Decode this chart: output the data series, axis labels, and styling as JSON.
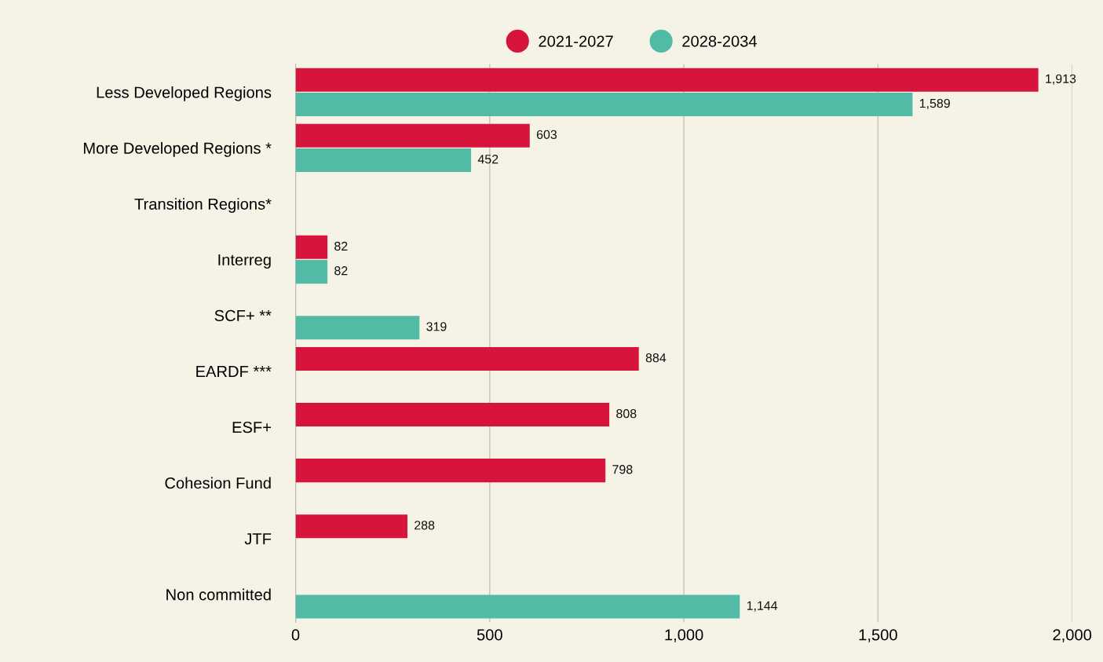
{
  "chart_data": {
    "type": "bar",
    "orientation": "horizontal",
    "categories": [
      "Less Developed Regions",
      "More Developed Regions *",
      "Transition Regions*",
      "Interreg",
      "SCF+ **",
      "EARDF ***",
      "ESF+",
      "Cohesion Fund",
      "JTF",
      "Non committed"
    ],
    "series": [
      {
        "name": "2021-2027",
        "color": "#d7143c",
        "values": [
          1913,
          603,
          null,
          82,
          null,
          884,
          808,
          798,
          288,
          null
        ],
        "value_labels": [
          "1,913",
          "603",
          null,
          "82",
          null,
          "884",
          "808",
          "798",
          "288",
          null
        ]
      },
      {
        "name": "2028-2034",
        "color": "#52bba6",
        "values": [
          1589,
          452,
          null,
          82,
          319,
          null,
          null,
          null,
          null,
          1144
        ],
        "value_labels": [
          "1,589",
          "452",
          null,
          "82",
          "319",
          null,
          null,
          null,
          null,
          "1,144"
        ]
      }
    ],
    "xlim": [
      0,
      2000
    ],
    "xticks": [
      0,
      500,
      {
        "value": 1000,
        "label": "1,000"
      },
      {
        "value": 1500,
        "label": "1,500"
      },
      {
        "value": 2000,
        "label": "2,000"
      }
    ],
    "grid": "x",
    "legend": "top"
  }
}
